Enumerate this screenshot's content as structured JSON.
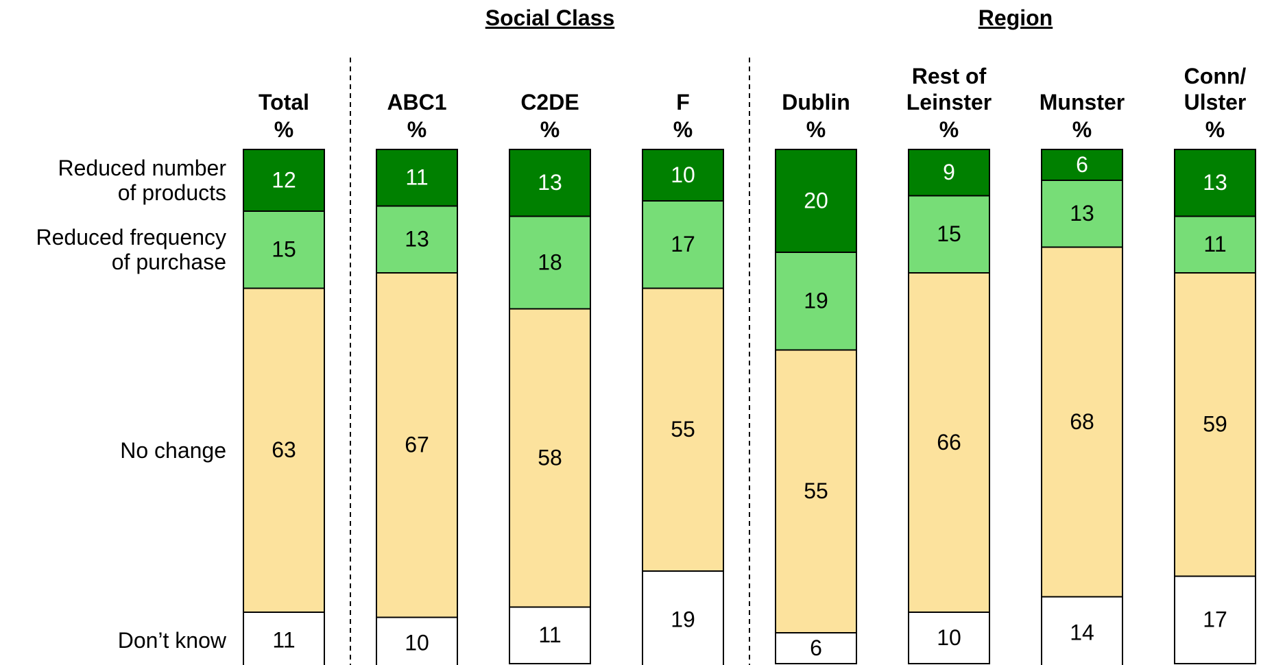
{
  "chart_data": {
    "type": "stacked_bar",
    "groups": [
      {
        "label": "Social Class",
        "from": 1,
        "to": 3
      },
      {
        "label": "Region",
        "from": 4,
        "to": 7
      }
    ],
    "categories": [
      "Total",
      "ABC1",
      "C2DE",
      "F",
      "Dublin",
      "Rest of\nLeinster",
      "Munster",
      "Conn/\nUlster"
    ],
    "unit_label": "%",
    "ylim": [
      0,
      100
    ],
    "series": [
      {
        "name": "Reduced number\nof products",
        "color": "#008000",
        "values": [
          12,
          11,
          13,
          10,
          20,
          9,
          6,
          13
        ]
      },
      {
        "name": "Reduced frequency\nof purchase",
        "color": "#77dd77",
        "values": [
          15,
          13,
          18,
          17,
          19,
          15,
          13,
          11
        ]
      },
      {
        "name": "No change",
        "color": "#fce29d",
        "values": [
          63,
          67,
          58,
          55,
          55,
          66,
          68,
          59
        ]
      },
      {
        "name": "Don’t know",
        "color": "#ffffff",
        "values": [
          11,
          10,
          11,
          19,
          6,
          10,
          14,
          17
        ]
      }
    ]
  }
}
